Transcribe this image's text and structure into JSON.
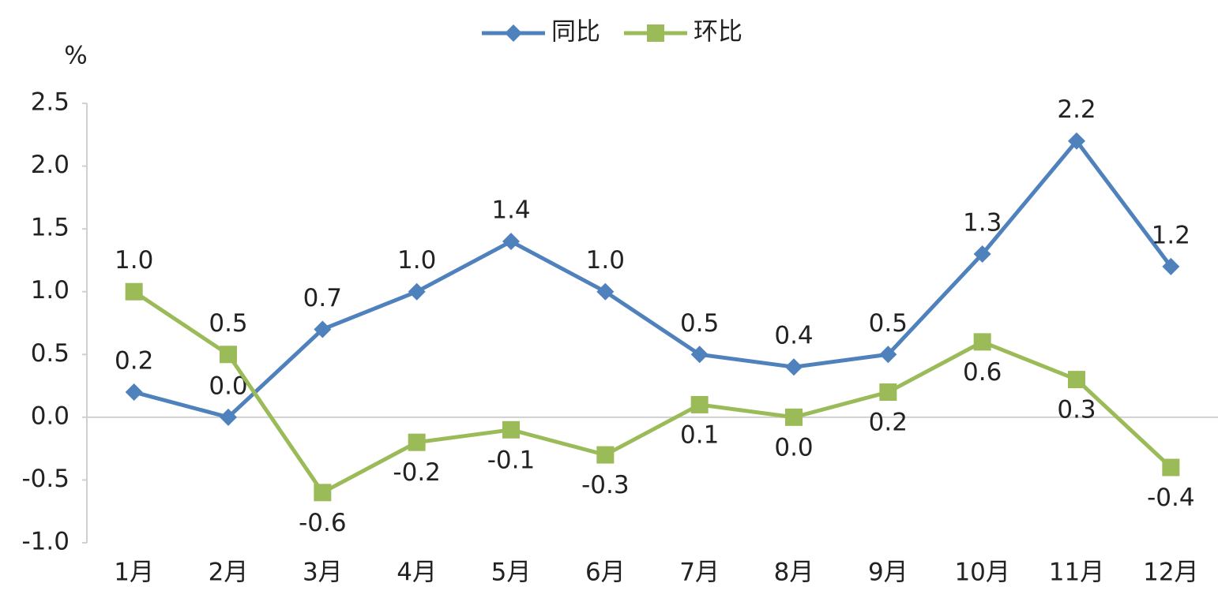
{
  "chart_data": {
    "type": "line",
    "y_label": "%",
    "categories": [
      "1月",
      "2月",
      "3月",
      "4月",
      "5月",
      "6月",
      "7月",
      "8月",
      "9月",
      "10月",
      "11月",
      "12月"
    ],
    "series": [
      {
        "name": "同比",
        "color": "#4f81bd",
        "marker": "diamond",
        "values": [
          0.2,
          0.0,
          0.7,
          1.0,
          1.4,
          1.0,
          0.5,
          0.4,
          0.5,
          1.3,
          2.2,
          1.2
        ],
        "value_labels": [
          "0.2",
          "0.0",
          "0.7",
          "1.0",
          "1.4",
          "1.0",
          "0.5",
          "0.4",
          "0.5",
          "1.3",
          "2.2",
          "1.2"
        ]
      },
      {
        "name": "环比",
        "color": "#9bbb59",
        "marker": "square",
        "values": [
          1.0,
          0.5,
          -0.6,
          -0.2,
          -0.1,
          -0.3,
          0.1,
          0.0,
          0.2,
          0.6,
          0.3,
          -0.4
        ],
        "value_labels": [
          "1.0",
          "0.5",
          "-0.6",
          "-0.2",
          "-0.1",
          "-0.3",
          "0.1",
          "0.0",
          "0.2",
          "0.6",
          "0.3",
          "-0.4"
        ]
      }
    ],
    "ylim": [
      -1.0,
      2.5
    ],
    "yticks": [
      {
        "value": -1.0,
        "label": "-1.0"
      },
      -0.5,
      {
        "value": 0.0,
        "label": "0.0"
      },
      0.5,
      {
        "value": 1.0,
        "label": "1.0"
      },
      1.5,
      {
        "value": 2.0,
        "label": "2.0"
      },
      2.5
    ],
    "legend": "top",
    "grid": false
  }
}
